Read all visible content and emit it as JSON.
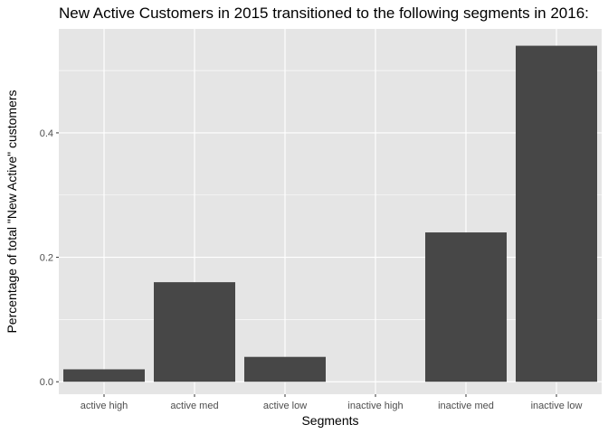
{
  "chart_data": {
    "type": "bar",
    "title": "New Active Customers in 2015 transitioned to the following segments in 2016:",
    "xlabel": "Segments",
    "ylabel": "Percentage of total \"New Active\" customers",
    "categories": [
      "active high",
      "active med",
      "active low",
      "inactive high",
      "inactive med",
      "inactive low"
    ],
    "values": [
      0.02,
      0.16,
      0.04,
      0.0,
      0.24,
      0.54
    ],
    "yticks": [
      0.0,
      0.2,
      0.4
    ],
    "ytick_labels": [
      "0.0",
      "0.2",
      "0.4"
    ],
    "ylim": [
      -0.02,
      0.567
    ],
    "grid": true,
    "colors": {
      "panel": "#e5e5e5",
      "grid": "#ffffff",
      "bar": "#474747",
      "text": "#4d4d4d"
    }
  }
}
